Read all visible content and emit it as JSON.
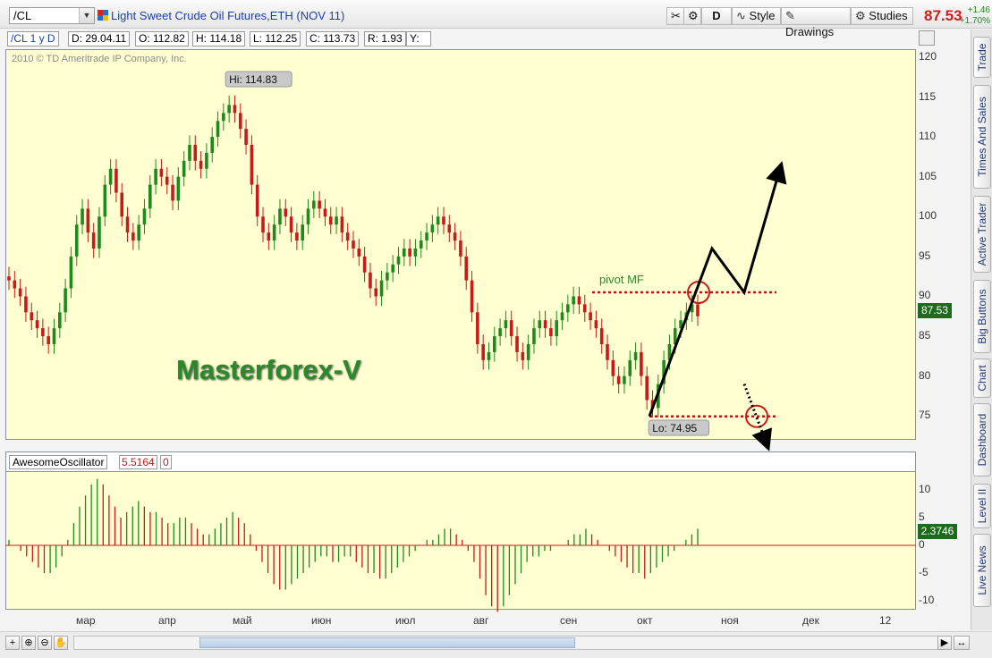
{
  "toolbar": {
    "symbol": "/CL",
    "instrument_title": "Light Sweet Crude Oil Futures,ETH (NOV 11)",
    "period_button": "D",
    "style_button": "Style",
    "drawings_button": "Drawings",
    "studies_button": "Studies",
    "last_price": "87.53",
    "change_abs": "+1.46",
    "change_pct": "+1.70%"
  },
  "infobar": {
    "symbol_period": "/CL 1 y D",
    "date": "D: 29.04.11",
    "open": "O: 112.82",
    "high": "H: 114.18",
    "low": "L: 112.25",
    "close": "C: 113.73",
    "range": "R: 1.93",
    "y": "Y:"
  },
  "chart": {
    "copyright": "2010 © TD Ameritrade IP Company, Inc.",
    "watermark": "Masterforex-V",
    "hi_label": "Hi: 114.83",
    "lo_label": "Lo: 74.95",
    "pivot_label": "pivot MF",
    "price_tag": "87.53",
    "y_ticks": [
      "120",
      "115",
      "110",
      "105",
      "100",
      "95",
      "90",
      "85",
      "80",
      "75"
    ]
  },
  "oscillator": {
    "name": "AwesomeOscillator",
    "value": "5.5164",
    "zero": "0",
    "value_tag": "2.3746",
    "y_ticks": [
      "10",
      "5",
      "0",
      "-5",
      "-10"
    ]
  },
  "x_ticks": [
    "мар",
    "апр",
    "май",
    "июн",
    "июл",
    "авг",
    "сен",
    "окт",
    "ноя",
    "дек",
    "12"
  ],
  "side_tabs": [
    "Trade",
    "Times And Sales",
    "Active Trader",
    "Big Buttons",
    "Chart",
    "Dashboard",
    "Level II",
    "Live News"
  ],
  "colors": {
    "up": "#1e8a1e",
    "down": "#c81a1a",
    "background": "#ffffd1",
    "last_price": "#d81a1a"
  },
  "chart_data": {
    "type": "candlestick",
    "title": "Light Sweet Crude Oil Futures,ETH (NOV 11)",
    "ylim": [
      72,
      121
    ],
    "x_labels": [
      "мар",
      "апр",
      "май",
      "июн",
      "июл",
      "авг",
      "сен",
      "окт",
      "ноя",
      "дек",
      "12"
    ],
    "key_points": [
      {
        "label": "Hi",
        "value": 114.83
      },
      {
        "label": "Lo",
        "value": 74.95
      },
      {
        "label": "pivot MF",
        "value": 90.5
      },
      {
        "label": "last",
        "value": 87.53
      }
    ],
    "closes": [
      92,
      91,
      90,
      88,
      87,
      86,
      85,
      84,
      86,
      88,
      91,
      95,
      99,
      101,
      98,
      96,
      100,
      104,
      106,
      103,
      100,
      98,
      97,
      99,
      101,
      104,
      106,
      105,
      104,
      102,
      105,
      107,
      109,
      107,
      106,
      108,
      110,
      112,
      113,
      114,
      113,
      111,
      109,
      104,
      100,
      98,
      97,
      99,
      101,
      100,
      98,
      97,
      99,
      101,
      102,
      101,
      100,
      99,
      100,
      98,
      97,
      96,
      95,
      93,
      91,
      90,
      92,
      93,
      94,
      95,
      96,
      95,
      96,
      97,
      98,
      99,
      100,
      99,
      98,
      97,
      95,
      92,
      88,
      84,
      82,
      83,
      85,
      86,
      87,
      85,
      83,
      82,
      84,
      86,
      87,
      86,
      85,
      87,
      88,
      89,
      90,
      89,
      88,
      87,
      86,
      84,
      82,
      80,
      79,
      80,
      82,
      83,
      80,
      77,
      76,
      79,
      82,
      84,
      86,
      87,
      88,
      89,
      87.5
    ],
    "oscillator_values": [
      1,
      0,
      -1,
      -2,
      -3,
      -4,
      -5,
      -5,
      -4,
      -2,
      1,
      4,
      7,
      9,
      11,
      12,
      11,
      9,
      7,
      5,
      6,
      7,
      8,
      7,
      6,
      6,
      5,
      4,
      4,
      5,
      5,
      4,
      3,
      2,
      2,
      3,
      4,
      5,
      6,
      5,
      4,
      2,
      -1,
      -3,
      -5,
      -7,
      -8,
      -8,
      -7,
      -6,
      -5,
      -4,
      -3,
      -2,
      -2,
      -3,
      -3,
      -2,
      -2,
      -3,
      -4,
      -5,
      -5,
      -6,
      -6,
      -5,
      -4,
      -3,
      -2,
      -1,
      0,
      1,
      1,
      2,
      3,
      3,
      2,
      1,
      -1,
      -3,
      -6,
      -9,
      -11,
      -12,
      -11,
      -9,
      -7,
      -5,
      -3,
      -2,
      -2,
      -1,
      -1,
      0,
      0,
      1,
      2,
      2,
      3,
      2,
      1,
      0,
      -1,
      -2,
      -3,
      -4,
      -5,
      -5,
      -6,
      -5,
      -4,
      -3,
      -2,
      -1,
      0,
      1,
      2,
      3
    ]
  }
}
